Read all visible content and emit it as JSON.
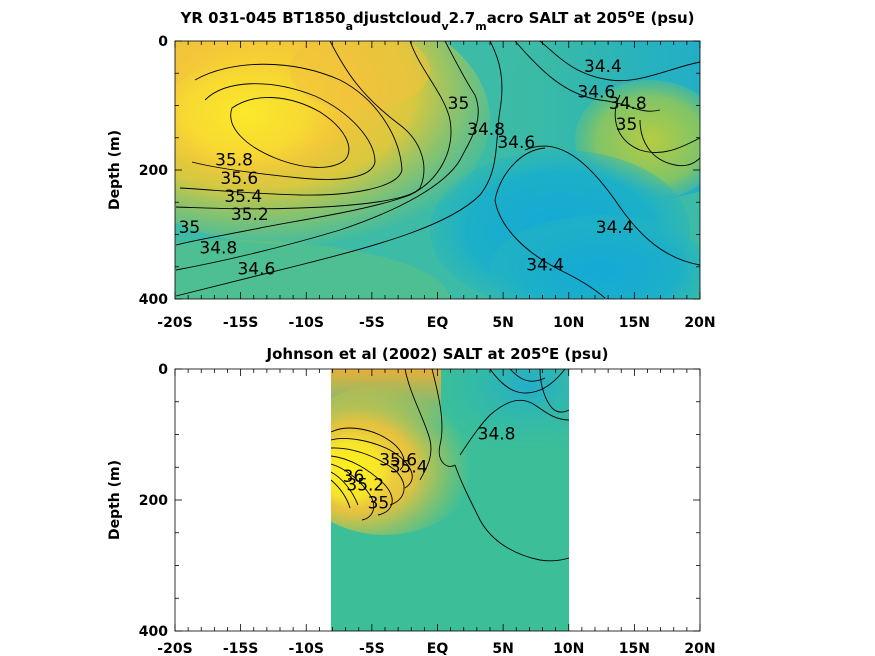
{
  "chart_data": [
    {
      "type": "contour",
      "title": {
        "parts": [
          {
            "text": "YR 031-045 BT1850",
            "shift": ""
          },
          {
            "text": "a",
            "shift": "sub"
          },
          {
            "text": "djustcloud",
            "shift": ""
          },
          {
            "text": "v",
            "shift": "sub"
          },
          {
            "text": "2.7",
            "shift": ""
          },
          {
            "text": "m",
            "shift": "sub"
          },
          {
            "text": "acro SALT at 205",
            "shift": ""
          },
          {
            "text": "o",
            "shift": "super"
          },
          {
            "text": "E (psu)",
            "shift": ""
          }
        ]
      },
      "ylabel": "Depth (m)",
      "xlim": [
        -20,
        20
      ],
      "ylim": [
        400,
        0
      ],
      "x_ticks": [
        {
          "value": -20,
          "label": "-20S"
        },
        {
          "value": -15,
          "label": "-15S"
        },
        {
          "value": -10,
          "label": "-10S"
        },
        {
          "value": -5,
          "label": "-5S"
        },
        {
          "value": 0,
          "label": "EQ"
        },
        {
          "value": 5,
          "label": "5N"
        },
        {
          "value": 10,
          "label": "10N"
        },
        {
          "value": 15,
          "label": "15N"
        },
        {
          "value": 20,
          "label": "20N"
        }
      ],
      "y_ticks": [
        {
          "value": 0,
          "label": "0"
        },
        {
          "value": 200,
          "label": "200"
        },
        {
          "value": 400,
          "label": "400"
        }
      ],
      "contour_levels": [
        34.4,
        34.6,
        34.8,
        35,
        35.2,
        35.4,
        35.6,
        35.8
      ],
      "contour_labels": [
        {
          "text": "34.4",
          "lat": 12.6,
          "depth": 40
        },
        {
          "text": "34.6",
          "lat": 12.1,
          "depth": 80
        },
        {
          "text": "34.8",
          "lat": 14.5,
          "depth": 98
        },
        {
          "text": "35",
          "lat": 14.4,
          "depth": 130
        },
        {
          "text": "35",
          "lat": 1.6,
          "depth": 98
        },
        {
          "text": "34.8",
          "lat": 3.7,
          "depth": 138
        },
        {
          "text": "34.6",
          "lat": 6.0,
          "depth": 158
        },
        {
          "text": "35.8",
          "lat": -15.5,
          "depth": 185
        },
        {
          "text": "35.6",
          "lat": -15.1,
          "depth": 214
        },
        {
          "text": "35.4",
          "lat": -14.8,
          "depth": 242
        },
        {
          "text": "35.2",
          "lat": -14.3,
          "depth": 270
        },
        {
          "text": "35",
          "lat": -18.9,
          "depth": 290
        },
        {
          "text": "34.8",
          "lat": -16.7,
          "depth": 322
        },
        {
          "text": "34.6",
          "lat": -13.8,
          "depth": 354
        },
        {
          "text": "34.4",
          "lat": 13.5,
          "depth": 290
        },
        {
          "text": "34.4",
          "lat": 8.2,
          "depth": 348
        }
      ]
    },
    {
      "type": "contour",
      "title": {
        "parts": [
          {
            "text": "Johnson et al (2002) SALT at 205",
            "shift": ""
          },
          {
            "text": "o",
            "shift": "super"
          },
          {
            "text": "E (psu)",
            "shift": ""
          }
        ]
      },
      "ylabel": "Depth (m)",
      "xlim": [
        -20,
        20
      ],
      "ylim": [
        400,
        0
      ],
      "data_extent_lat": [
        -8,
        10
      ],
      "x_ticks": [
        {
          "value": -20,
          "label": "-20S"
        },
        {
          "value": -15,
          "label": "-15S"
        },
        {
          "value": -10,
          "label": "-10S"
        },
        {
          "value": -5,
          "label": "-5S"
        },
        {
          "value": 0,
          "label": "EQ"
        },
        {
          "value": 5,
          "label": "5N"
        },
        {
          "value": 10,
          "label": "10N"
        },
        {
          "value": 15,
          "label": "15N"
        },
        {
          "value": 20,
          "label": "20N"
        }
      ],
      "y_ticks": [
        {
          "value": 0,
          "label": "0"
        },
        {
          "value": 200,
          "label": "200"
        },
        {
          "value": 400,
          "label": "400"
        }
      ],
      "contour_levels": [
        34.8,
        35,
        35.2,
        35.4,
        35.6,
        35.8,
        36
      ],
      "contour_labels": [
        {
          "text": "34.8",
          "lat": 4.5,
          "depth": 100
        },
        {
          "text": "35",
          "lat": -4.5,
          "depth": 205
        },
        {
          "text": "35.2",
          "lat": -5.5,
          "depth": 178
        },
        {
          "text": "35.4",
          "lat": -2.2,
          "depth": 150
        },
        {
          "text": "36",
          "lat": -6.4,
          "depth": 165
        },
        {
          "text": "35.6",
          "lat": -3.0,
          "depth": 140
        }
      ]
    }
  ]
}
